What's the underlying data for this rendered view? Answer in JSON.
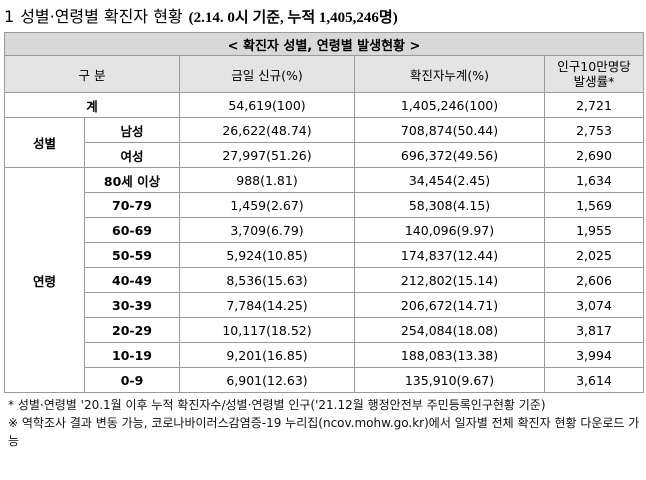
{
  "heading": {
    "number": "1",
    "title": "성별·연령별 확진자 현황",
    "basis": "(2.14. 0시 기준, 누적 1,405,246명)"
  },
  "table": {
    "caption": "< 확진자 성별, 연령별 발생현황 >",
    "columns": {
      "category": "구 분",
      "new_today": "금일 신규(%)",
      "cumulative": "확진자누계(%)",
      "per100k_line1": "인구10만명당",
      "per100k_line2": "발생률*"
    },
    "total": {
      "label": "계",
      "new_today": "54,619(100)",
      "cumulative": "1,405,246(100)",
      "per100k": "2,721"
    },
    "sex": {
      "group": "성별",
      "rows": [
        {
          "label": "남성",
          "new_today": "26,622(48.74)",
          "cumulative": "708,874(50.44)",
          "per100k": "2,753"
        },
        {
          "label": "여성",
          "new_today": "27,997(51.26)",
          "cumulative": "696,372(49.56)",
          "per100k": "2,690"
        }
      ]
    },
    "age": {
      "group": "연령",
      "rows": [
        {
          "label": "80세 이상",
          "new_today": "988(1.81)",
          "cumulative": "34,454(2.45)",
          "per100k": "1,634"
        },
        {
          "label": "70-79",
          "new_today": "1,459(2.67)",
          "cumulative": "58,308(4.15)",
          "per100k": "1,569"
        },
        {
          "label": "60-69",
          "new_today": "3,709(6.79)",
          "cumulative": "140,096(9.97)",
          "per100k": "1,955"
        },
        {
          "label": "50-59",
          "new_today": "5,924(10.85)",
          "cumulative": "174,837(12.44)",
          "per100k": "2,025"
        },
        {
          "label": "40-49",
          "new_today": "8,536(15.63)",
          "cumulative": "212,802(15.14)",
          "per100k": "2,606"
        },
        {
          "label": "30-39",
          "new_today": "7,784(14.25)",
          "cumulative": "206,672(14.71)",
          "per100k": "3,074"
        },
        {
          "label": "20-29",
          "new_today": "10,117(18.52)",
          "cumulative": "254,084(18.08)",
          "per100k": "3,817"
        },
        {
          "label": "10-19",
          "new_today": "9,201(16.85)",
          "cumulative": "188,083(13.38)",
          "per100k": "3,994"
        },
        {
          "label": "0-9",
          "new_today": "6,901(12.63)",
          "cumulative": "135,910(9.67)",
          "per100k": "3,614"
        }
      ]
    }
  },
  "notes": [
    "* 성별·연령별 '20.1월 이후 누적 확진자수/성별·연령별 인구('21.12월 행정안전부 주민등록인구현황 기준)",
    "※ 역학조사 결과 변동 가능, 코로나바이러스감염증-19 누리집(ncov.mohw.go.kr)에서 일자별 전체 확진자 현황 다운로드 가능"
  ]
}
